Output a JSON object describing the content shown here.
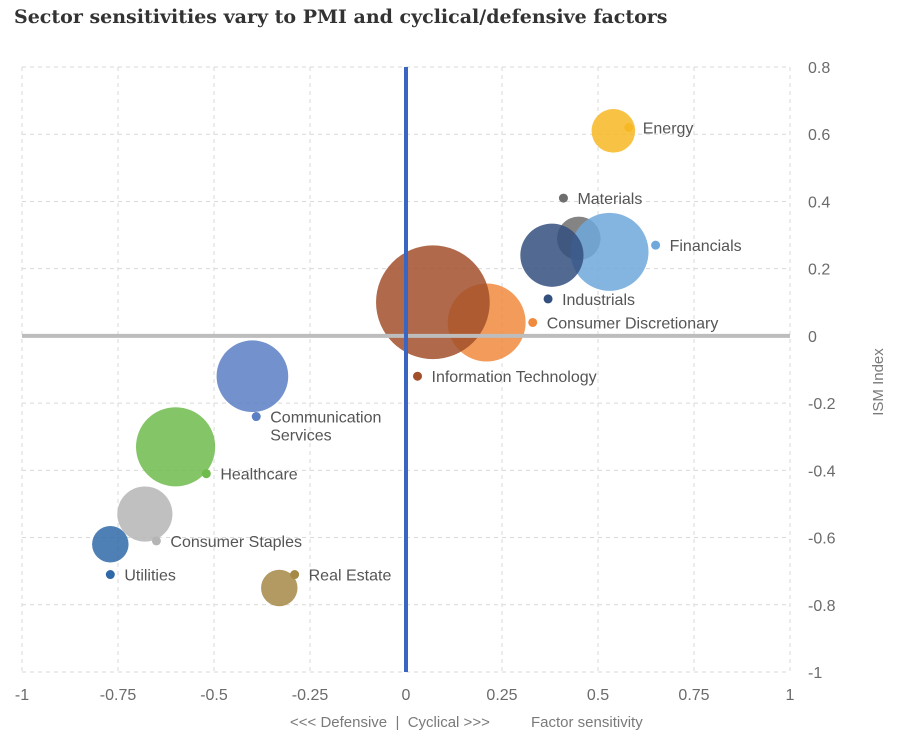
{
  "chart_data": {
    "type": "scatter",
    "title": "Sector sensitivities vary to PMI and cyclical/defensive factors",
    "xlabel": "Factor sensitivity",
    "xlabel_direction": "<<< Defensive  |  Cyclical >>>",
    "ylabel": "ISM Index",
    "xlim": [
      -1,
      1
    ],
    "ylim": [
      -1,
      0.8
    ],
    "x_ticks": [
      "-1",
      "-0.75",
      "-0.5",
      "-0.25",
      "0",
      "0.25",
      "0.5",
      "0.75",
      "1"
    ],
    "y_ticks": [
      "0.8",
      "0.6",
      "0.4",
      "0.2",
      "0",
      "-0.2",
      "-0.4",
      "-0.6",
      "-0.8",
      "-1"
    ],
    "grid": true,
    "series": [
      {
        "name": "Energy",
        "x": 0.58,
        "y": 0.62,
        "bubble": {
          "x": 0.54,
          "y": 0.61,
          "size": 1.0
        },
        "color": "#f7b825",
        "label": [
          "Energy"
        ]
      },
      {
        "name": "Materials",
        "x": 0.41,
        "y": 0.41,
        "bubble": {
          "x": 0.45,
          "y": 0.29,
          "size": 1.0
        },
        "color": "#6e6e6e",
        "label": [
          "Materials"
        ]
      },
      {
        "name": "Financials",
        "x": 0.65,
        "y": 0.27,
        "bubble": {
          "x": 0.53,
          "y": 0.25,
          "size": 3.2
        },
        "color": "#6fa8dc",
        "label": [
          "Financials"
        ]
      },
      {
        "name": "Industrials",
        "x": 0.37,
        "y": 0.11,
        "bubble": {
          "x": 0.38,
          "y": 0.24,
          "size": 2.1
        },
        "color": "#34507f",
        "label": [
          "Industrials"
        ]
      },
      {
        "name": "Consumer Discretionary",
        "x": 0.33,
        "y": 0.04,
        "bubble": {
          "x": 0.21,
          "y": 0.04,
          "size": 3.2
        },
        "color": "#f08a3e",
        "label": [
          "Consumer Discretionary"
        ]
      },
      {
        "name": "Information Technology",
        "x": 0.03,
        "y": -0.12,
        "bubble": {
          "x": 0.07,
          "y": 0.1,
          "size": 6.8
        },
        "color": "#a2502c",
        "label": [
          "Information Technology"
        ]
      },
      {
        "name": "Communication Services",
        "x": -0.39,
        "y": -0.24,
        "bubble": {
          "x": -0.4,
          "y": -0.12,
          "size": 2.7
        },
        "color": "#5a7fc4",
        "label": [
          "Communication",
          "Services"
        ]
      },
      {
        "name": "Healthcare",
        "x": -0.52,
        "y": -0.41,
        "bubble": {
          "x": -0.6,
          "y": -0.33,
          "size": 3.3
        },
        "color": "#6fbb4c",
        "label": [
          "Healthcare"
        ]
      },
      {
        "name": "Consumer Staples",
        "x": -0.65,
        "y": -0.61,
        "bubble": {
          "x": -0.68,
          "y": -0.53,
          "size": 1.6
        },
        "color": "#b5b5b5",
        "label": [
          "Consumer Staples"
        ]
      },
      {
        "name": "Utilities",
        "x": -0.77,
        "y": -0.71,
        "bubble": {
          "x": -0.77,
          "y": -0.62,
          "size": 0.7
        },
        "color": "#2f69a8",
        "label": [
          "Utilities"
        ]
      },
      {
        "name": "Real Estate",
        "x": -0.29,
        "y": -0.71,
        "bubble": {
          "x": -0.33,
          "y": -0.75,
          "size": 0.7
        },
        "color": "#a68847",
        "label": [
          "Real Estate"
        ]
      }
    ],
    "zero_lines": {
      "vertical_color": "#3a66c2",
      "horizontal_color": "#bdbdbd"
    }
  }
}
